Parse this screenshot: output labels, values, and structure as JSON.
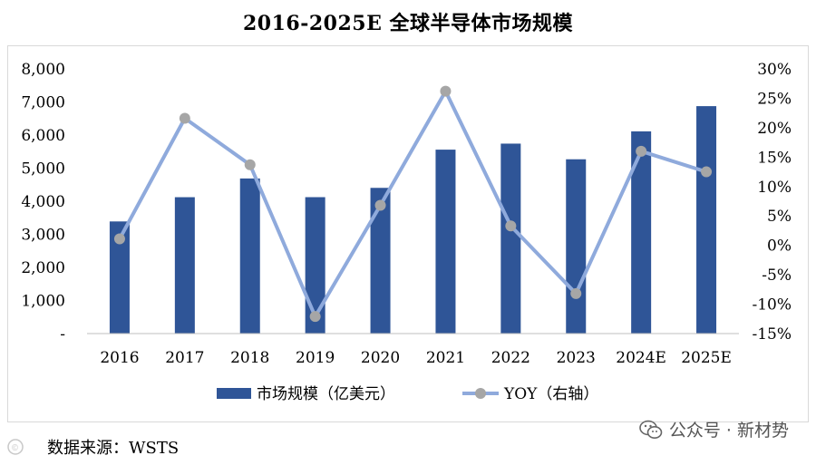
{
  "chart_data": {
    "type": "bar+line",
    "title": "2016-2025E 全球半导体市场规模",
    "categories": [
      "2016",
      "2017",
      "2018",
      "2019",
      "2020",
      "2021",
      "2022",
      "2023",
      "2024E",
      "2025E"
    ],
    "series": [
      {
        "name": "市场规模（亿美元）",
        "type": "bar",
        "axis": "left",
        "color": "#2f5597",
        "values": [
          3389,
          4122,
          4688,
          4123,
          4404,
          5559,
          5741,
          5268,
          6112,
          6874
        ]
      },
      {
        "name": "YOY（右轴）",
        "type": "line",
        "axis": "right",
        "color": "#8faadc",
        "marker_color": "#a6a6a6",
        "values": [
          1.1,
          21.6,
          13.7,
          -12.1,
          6.8,
          26.2,
          3.3,
          -8.2,
          16.0,
          12.5
        ]
      }
    ],
    "y_left": {
      "range": [
        0,
        8000
      ],
      "ticks": [
        0,
        1000,
        2000,
        3000,
        4000,
        5000,
        6000,
        7000,
        8000
      ],
      "tick_labels": [
        "-",
        "1,000",
        "2,000",
        "3,000",
        "4,000",
        "5,000",
        "6,000",
        "7,000",
        "8,000"
      ]
    },
    "y_right": {
      "range": [
        -15,
        30
      ],
      "ticks": [
        -15,
        -10,
        -5,
        0,
        5,
        10,
        15,
        20,
        25,
        30
      ],
      "tick_labels": [
        "-15%",
        "-10%",
        "-5%",
        "0%",
        "5%",
        "10%",
        "15%",
        "20%",
        "25%",
        "30%"
      ]
    },
    "grid": false,
    "legend_position": "bottom"
  },
  "source_text": "数据来源：WSTS",
  "watermark": {
    "text": "公众号 · 新材势",
    "icon": "wechat-icon"
  }
}
